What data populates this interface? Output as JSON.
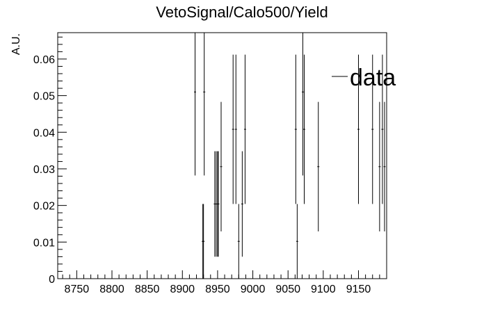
{
  "chart_data": {
    "type": "scatter",
    "title": "VetoSignal/Calo500/Yield",
    "xlabel": "",
    "ylabel": "A.U.",
    "xlim": [
      8723,
      9190
    ],
    "ylim": [
      0,
      0.0672
    ],
    "grid": false,
    "legend": {
      "placement": "top-right",
      "entries": [
        "data"
      ]
    },
    "x_ticks": [
      8750,
      8800,
      8850,
      8900,
      8950,
      9000,
      9050,
      9100,
      9150
    ],
    "x_tick_labels": [
      "8750",
      "8800",
      "8850",
      "8900",
      "8950",
      "9000",
      "9050",
      "9100",
      "9150"
    ],
    "y_ticks": [
      0,
      0.01,
      0.02,
      0.03,
      0.04,
      0.05,
      0.06
    ],
    "y_tick_labels": [
      "0",
      "0.01",
      "0.02",
      "0.03",
      "0.04",
      "0.05",
      "0.06"
    ],
    "series": [
      {
        "name": "data",
        "x": [
          8918,
          8929,
          8930,
          8931,
          8946,
          8948,
          8950,
          8951,
          8955,
          8972,
          8976,
          8980,
          8985,
          8989,
          9061,
          9063,
          9071,
          9073,
          9093,
          9150,
          9170,
          9180,
          9184,
          9187
        ],
        "y": [
          0.051,
          0.0102,
          0.0102,
          0.051,
          0.0204,
          0.0204,
          0.0204,
          0.0204,
          0.0306,
          0.0408,
          0.0408,
          0.0102,
          0.0204,
          0.0408,
          0.0408,
          0.0102,
          0.051,
          0.0408,
          0.0306,
          0.0408,
          0.0408,
          0.0306,
          0.0408,
          0.0306
        ],
        "yerr": [
          0.0228,
          0.0102,
          0.0102,
          0.0228,
          0.0144,
          0.0144,
          0.0144,
          0.0144,
          0.0177,
          0.0204,
          0.0204,
          0.0102,
          0.0144,
          0.0204,
          0.0204,
          0.0102,
          0.0228,
          0.0204,
          0.0177,
          0.0204,
          0.0204,
          0.0177,
          0.0204,
          0.0177
        ]
      }
    ]
  }
}
